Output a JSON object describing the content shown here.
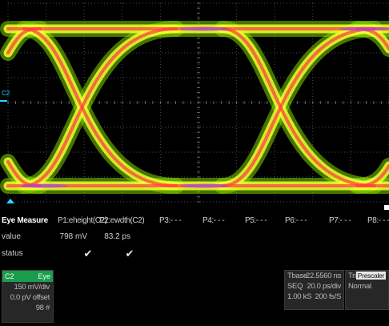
{
  "display": {
    "channel_marker": "C2",
    "colors": {
      "background": "#000000",
      "grid": "#4a4a4a",
      "trace_low": "#7fd400",
      "trace_mid": "#f0ff30",
      "trace_hot": "#ff4040",
      "trace_peak": "#a040ff",
      "marker": "#2ad7ff"
    }
  },
  "measure": {
    "title": "Eye Measure",
    "params": [
      "P1:eheight(C2)",
      "P2:ewdth(C2)",
      "P3:- - -",
      "P4:- - -",
      "P5:- - -",
      "P6:- - -",
      "P7:- - -",
      "P8:- - -"
    ],
    "row_value_label": "value",
    "row_status_label": "status",
    "values": [
      "798 mV",
      "83.2 ps"
    ],
    "status_icons": [
      "check-icon",
      "check-icon"
    ]
  },
  "channel": {
    "name": "C2",
    "mode": "Eye",
    "scale": "150 mV/div",
    "offset": "0.0 pV offset",
    "count": "98 #"
  },
  "timebase": {
    "label": "Tbase",
    "delay": "-22.5560 ns",
    "mode": "SEQ",
    "per_div": "20.0 ps/div",
    "samples": "1.00 kS",
    "rate": "200 fs/S"
  },
  "trigger": {
    "label": "Trigger",
    "source": "Prescaler",
    "mode": "Normal"
  }
}
